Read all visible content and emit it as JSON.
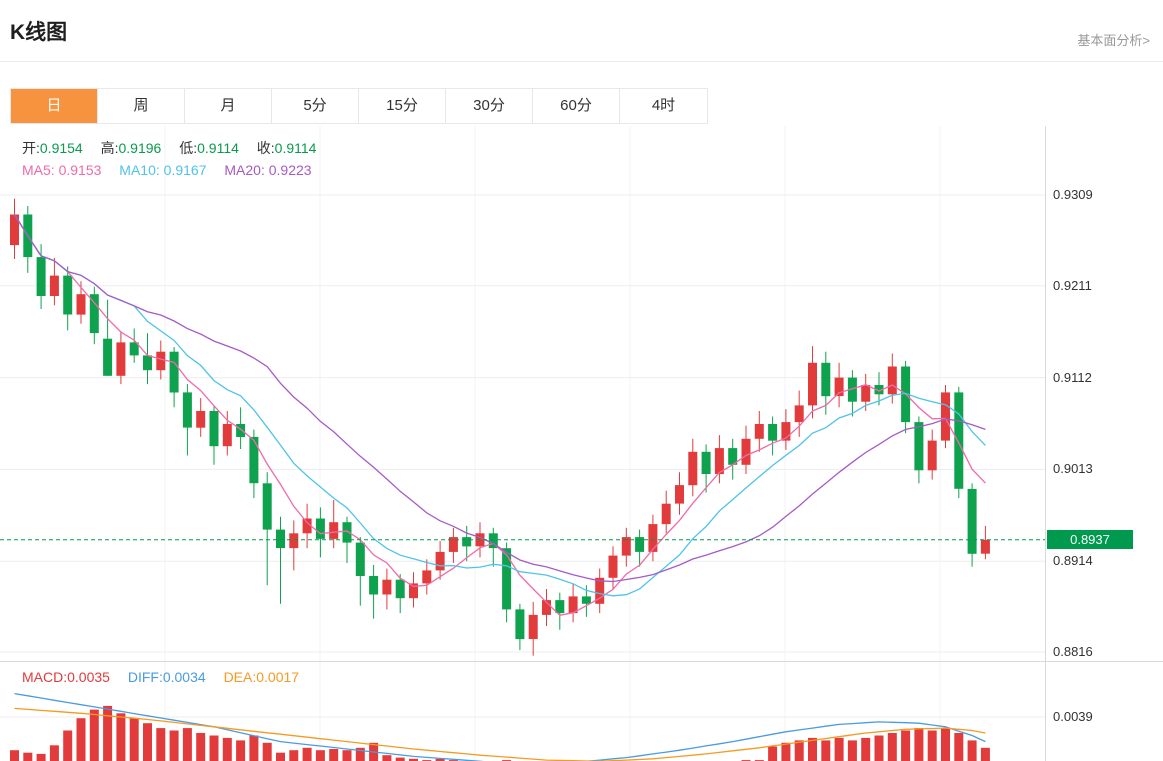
{
  "header": {
    "title": "K线图",
    "link_label": "基本面分析>"
  },
  "tabs": [
    {
      "name": "day",
      "label": "日",
      "active": true
    },
    {
      "name": "week",
      "label": "周",
      "active": false
    },
    {
      "name": "month",
      "label": "月",
      "active": false
    },
    {
      "name": "5min",
      "label": "5分",
      "active": false
    },
    {
      "name": "15min",
      "label": "15分",
      "active": false
    },
    {
      "name": "30min",
      "label": "30分",
      "active": false
    },
    {
      "name": "60min",
      "label": "60分",
      "active": false
    },
    {
      "name": "4hour",
      "label": "4时",
      "active": false
    }
  ],
  "legend": {
    "ohlc": [
      {
        "label": "开:",
        "value": "0.9154"
      },
      {
        "label": "高:",
        "value": "0.9196"
      },
      {
        "label": "低:",
        "value": "0.9114"
      },
      {
        "label": "收:",
        "value": "0.9114"
      }
    ],
    "ma": [
      {
        "label": "MA5:",
        "value": "0.9153",
        "color": "#ef6ba8"
      },
      {
        "label": "MA10:",
        "value": "0.9167",
        "color": "#4fc3e8"
      },
      {
        "label": "MA20:",
        "value": "0.9223",
        "color": "#a55bc5"
      }
    ]
  },
  "macd_legend": [
    {
      "label": "MACD:",
      "value": "0.0035",
      "color": "#e23b3b"
    },
    {
      "label": "DIFF:",
      "value": "0.0034",
      "color": "#4a9be0"
    },
    {
      "label": "DEA:",
      "value": "0.0017",
      "color": "#f59a23"
    }
  ],
  "chart_data": {
    "type": "candlestick",
    "y_axis_labels": [
      "0.9309",
      "0.9211",
      "0.9112",
      "0.9013",
      "0.8914",
      "0.8816"
    ],
    "current_price": "0.8937",
    "ma_periods": [
      5,
      10,
      20
    ],
    "colors": {
      "up": "#e23b3b",
      "down": "#0ea24e",
      "ma5": "#ef6ba8",
      "ma10": "#4fc3e8",
      "ma20": "#a55bc5",
      "macd_bar": "#e23b3b",
      "diff": "#4a9be0",
      "dea": "#f59a23",
      "price_line": "#009a4e",
      "badge_bg": "#009a4e",
      "grid": "#ededed",
      "grid_v": "#f3f3f3",
      "axis_border": "#d9d9d9",
      "axis_text": "#333333"
    },
    "candles": [
      [
        0.9255,
        0.9305,
        0.924,
        0.9288
      ],
      [
        0.9288,
        0.9297,
        0.9225,
        0.9242
      ],
      [
        0.9242,
        0.9256,
        0.9186,
        0.92
      ],
      [
        0.92,
        0.9241,
        0.919,
        0.9222
      ],
      [
        0.9222,
        0.9232,
        0.9163,
        0.918
      ],
      [
        0.918,
        0.9216,
        0.917,
        0.9202
      ],
      [
        0.9202,
        0.921,
        0.9148,
        0.916
      ],
      [
        0.9154,
        0.9196,
        0.9114,
        0.9114
      ],
      [
        0.9114,
        0.9162,
        0.9105,
        0.915
      ],
      [
        0.915,
        0.9165,
        0.9128,
        0.9136
      ],
      [
        0.9136,
        0.916,
        0.9105,
        0.912
      ],
      [
        0.912,
        0.9152,
        0.911,
        0.914
      ],
      [
        0.914,
        0.9145,
        0.908,
        0.9096
      ],
      [
        0.9096,
        0.9105,
        0.9028,
        0.9058
      ],
      [
        0.9058,
        0.909,
        0.9048,
        0.9076
      ],
      [
        0.9076,
        0.9082,
        0.9018,
        0.9038
      ],
      [
        0.9038,
        0.9076,
        0.9028,
        0.9062
      ],
      [
        0.9062,
        0.908,
        0.9035,
        0.9048
      ],
      [
        0.9048,
        0.9056,
        0.8982,
        0.8998
      ],
      [
        0.8998,
        0.901,
        0.8888,
        0.8948
      ],
      [
        0.8948,
        0.8962,
        0.8868,
        0.8928
      ],
      [
        0.8928,
        0.8958,
        0.8904,
        0.8944
      ],
      [
        0.8944,
        0.8976,
        0.8928,
        0.896
      ],
      [
        0.896,
        0.8972,
        0.8918,
        0.8938
      ],
      [
        0.8938,
        0.898,
        0.8928,
        0.8956
      ],
      [
        0.8956,
        0.8962,
        0.8912,
        0.8934
      ],
      [
        0.8934,
        0.894,
        0.8866,
        0.8898
      ],
      [
        0.8898,
        0.891,
        0.8852,
        0.8878
      ],
      [
        0.8878,
        0.8906,
        0.8862,
        0.8894
      ],
      [
        0.8894,
        0.89,
        0.8858,
        0.8874
      ],
      [
        0.8874,
        0.8902,
        0.8864,
        0.889
      ],
      [
        0.889,
        0.8916,
        0.8878,
        0.8904
      ],
      [
        0.8904,
        0.8936,
        0.8894,
        0.8924
      ],
      [
        0.8924,
        0.895,
        0.8912,
        0.894
      ],
      [
        0.894,
        0.8952,
        0.8914,
        0.893
      ],
      [
        0.893,
        0.8956,
        0.8918,
        0.8944
      ],
      [
        0.8944,
        0.895,
        0.8908,
        0.8928
      ],
      [
        0.8928,
        0.8934,
        0.8848,
        0.8862
      ],
      [
        0.8862,
        0.8868,
        0.8818,
        0.883
      ],
      [
        0.883,
        0.887,
        0.8812,
        0.8856
      ],
      [
        0.8856,
        0.8884,
        0.8844,
        0.8872
      ],
      [
        0.8872,
        0.888,
        0.884,
        0.8858
      ],
      [
        0.8858,
        0.889,
        0.8848,
        0.8876
      ],
      [
        0.8876,
        0.8888,
        0.8854,
        0.8868
      ],
      [
        0.8868,
        0.8906,
        0.8858,
        0.8896
      ],
      [
        0.8896,
        0.893,
        0.8884,
        0.892
      ],
      [
        0.892,
        0.895,
        0.8908,
        0.894
      ],
      [
        0.894,
        0.8948,
        0.8908,
        0.8924
      ],
      [
        0.8924,
        0.8964,
        0.8914,
        0.8954
      ],
      [
        0.8954,
        0.899,
        0.8944,
        0.8976
      ],
      [
        0.8976,
        0.901,
        0.8964,
        0.8996
      ],
      [
        0.8996,
        0.9046,
        0.8984,
        0.9032
      ],
      [
        0.9032,
        0.904,
        0.8988,
        0.9008
      ],
      [
        0.9008,
        0.905,
        0.8998,
        0.9036
      ],
      [
        0.9036,
        0.9046,
        0.9002,
        0.9018
      ],
      [
        0.9018,
        0.906,
        0.9008,
        0.9046
      ],
      [
        0.9046,
        0.9076,
        0.9032,
        0.9062
      ],
      [
        0.9062,
        0.907,
        0.9028,
        0.9044
      ],
      [
        0.9044,
        0.9078,
        0.9034,
        0.9064
      ],
      [
        0.9064,
        0.9098,
        0.9048,
        0.9082
      ],
      [
        0.9082,
        0.9146,
        0.9068,
        0.9128
      ],
      [
        0.9128,
        0.914,
        0.9072,
        0.9092
      ],
      [
        0.9092,
        0.9128,
        0.908,
        0.9112
      ],
      [
        0.9112,
        0.912,
        0.907,
        0.9086
      ],
      [
        0.9086,
        0.9116,
        0.9076,
        0.9104
      ],
      [
        0.9104,
        0.9118,
        0.9082,
        0.9094
      ],
      [
        0.9094,
        0.9138,
        0.9084,
        0.9124
      ],
      [
        0.9124,
        0.913,
        0.9052,
        0.9064
      ],
      [
        0.9064,
        0.907,
        0.8998,
        0.9012
      ],
      [
        0.9012,
        0.9056,
        0.9002,
        0.9044
      ],
      [
        0.9044,
        0.9104,
        0.9036,
        0.9096
      ],
      [
        0.9096,
        0.9102,
        0.8982,
        0.8992
      ],
      [
        0.8992,
        0.8998,
        0.8908,
        0.8922
      ],
      [
        0.8922,
        0.8952,
        0.8916,
        0.8937
      ]
    ],
    "macd": {
      "axis_label": "0.0039",
      "hist": [
        0.0012,
        0.001,
        0.0009,
        0.0016,
        0.0028,
        0.0038,
        0.0045,
        0.0048,
        0.0042,
        0.0038,
        0.0034,
        0.003,
        0.0028,
        0.003,
        0.0026,
        0.0024,
        0.0022,
        0.002,
        0.0024,
        0.0018,
        0.001,
        0.0012,
        0.0014,
        0.0012,
        0.0013,
        0.0012,
        0.0014,
        0.0018,
        0.0008,
        0.0006,
        0.0005,
        0.0004,
        0.0005,
        0.0004,
        0.0003,
        0.0002,
        0.0002,
        0.0004,
        0.0003,
        0.0002,
        0.0001,
        0.0001,
        0.0001,
        0.0001,
        0.0001,
        0.0001,
        0.0002,
        0.0002,
        0.0002,
        0.0002,
        0.0003,
        0.0003,
        0.0003,
        0.0003,
        0.0003,
        0.0004,
        0.0004,
        0.0015,
        0.0018,
        0.002,
        0.0022,
        0.002,
        0.0022,
        0.002,
        0.0022,
        0.0024,
        0.0026,
        0.0028,
        0.003,
        0.0028,
        0.003,
        0.0026,
        0.002,
        0.0014
      ],
      "diff_points": [
        [
          0,
          0.0058
        ],
        [
          5,
          0.0049
        ],
        [
          10,
          0.004
        ],
        [
          15,
          0.0031
        ],
        [
          20,
          0.0019
        ],
        [
          25,
          0.0013
        ],
        [
          30,
          0.0007
        ],
        [
          35,
          0.0003
        ],
        [
          38,
          0.0
        ],
        [
          42,
          0.0002
        ],
        [
          46,
          0.0006
        ],
        [
          50,
          0.0012
        ],
        [
          54,
          0.0019
        ],
        [
          58,
          0.0027
        ],
        [
          62,
          0.0033
        ],
        [
          65,
          0.0035
        ],
        [
          68,
          0.0034
        ],
        [
          70,
          0.0031
        ],
        [
          72,
          0.0024
        ],
        [
          73,
          0.0019
        ]
      ],
      "dea_points": [
        [
          0,
          0.0046
        ],
        [
          5,
          0.0042
        ],
        [
          10,
          0.0037
        ],
        [
          15,
          0.0031
        ],
        [
          20,
          0.0025
        ],
        [
          25,
          0.0019
        ],
        [
          30,
          0.0013
        ],
        [
          35,
          0.0008
        ],
        [
          40,
          0.0004
        ],
        [
          44,
          0.0003
        ],
        [
          48,
          0.0005
        ],
        [
          52,
          0.0009
        ],
        [
          56,
          0.0014
        ],
        [
          60,
          0.002
        ],
        [
          64,
          0.0026
        ],
        [
          67,
          0.0029
        ],
        [
          70,
          0.003
        ],
        [
          72,
          0.0028
        ],
        [
          73,
          0.0026
        ]
      ]
    }
  }
}
